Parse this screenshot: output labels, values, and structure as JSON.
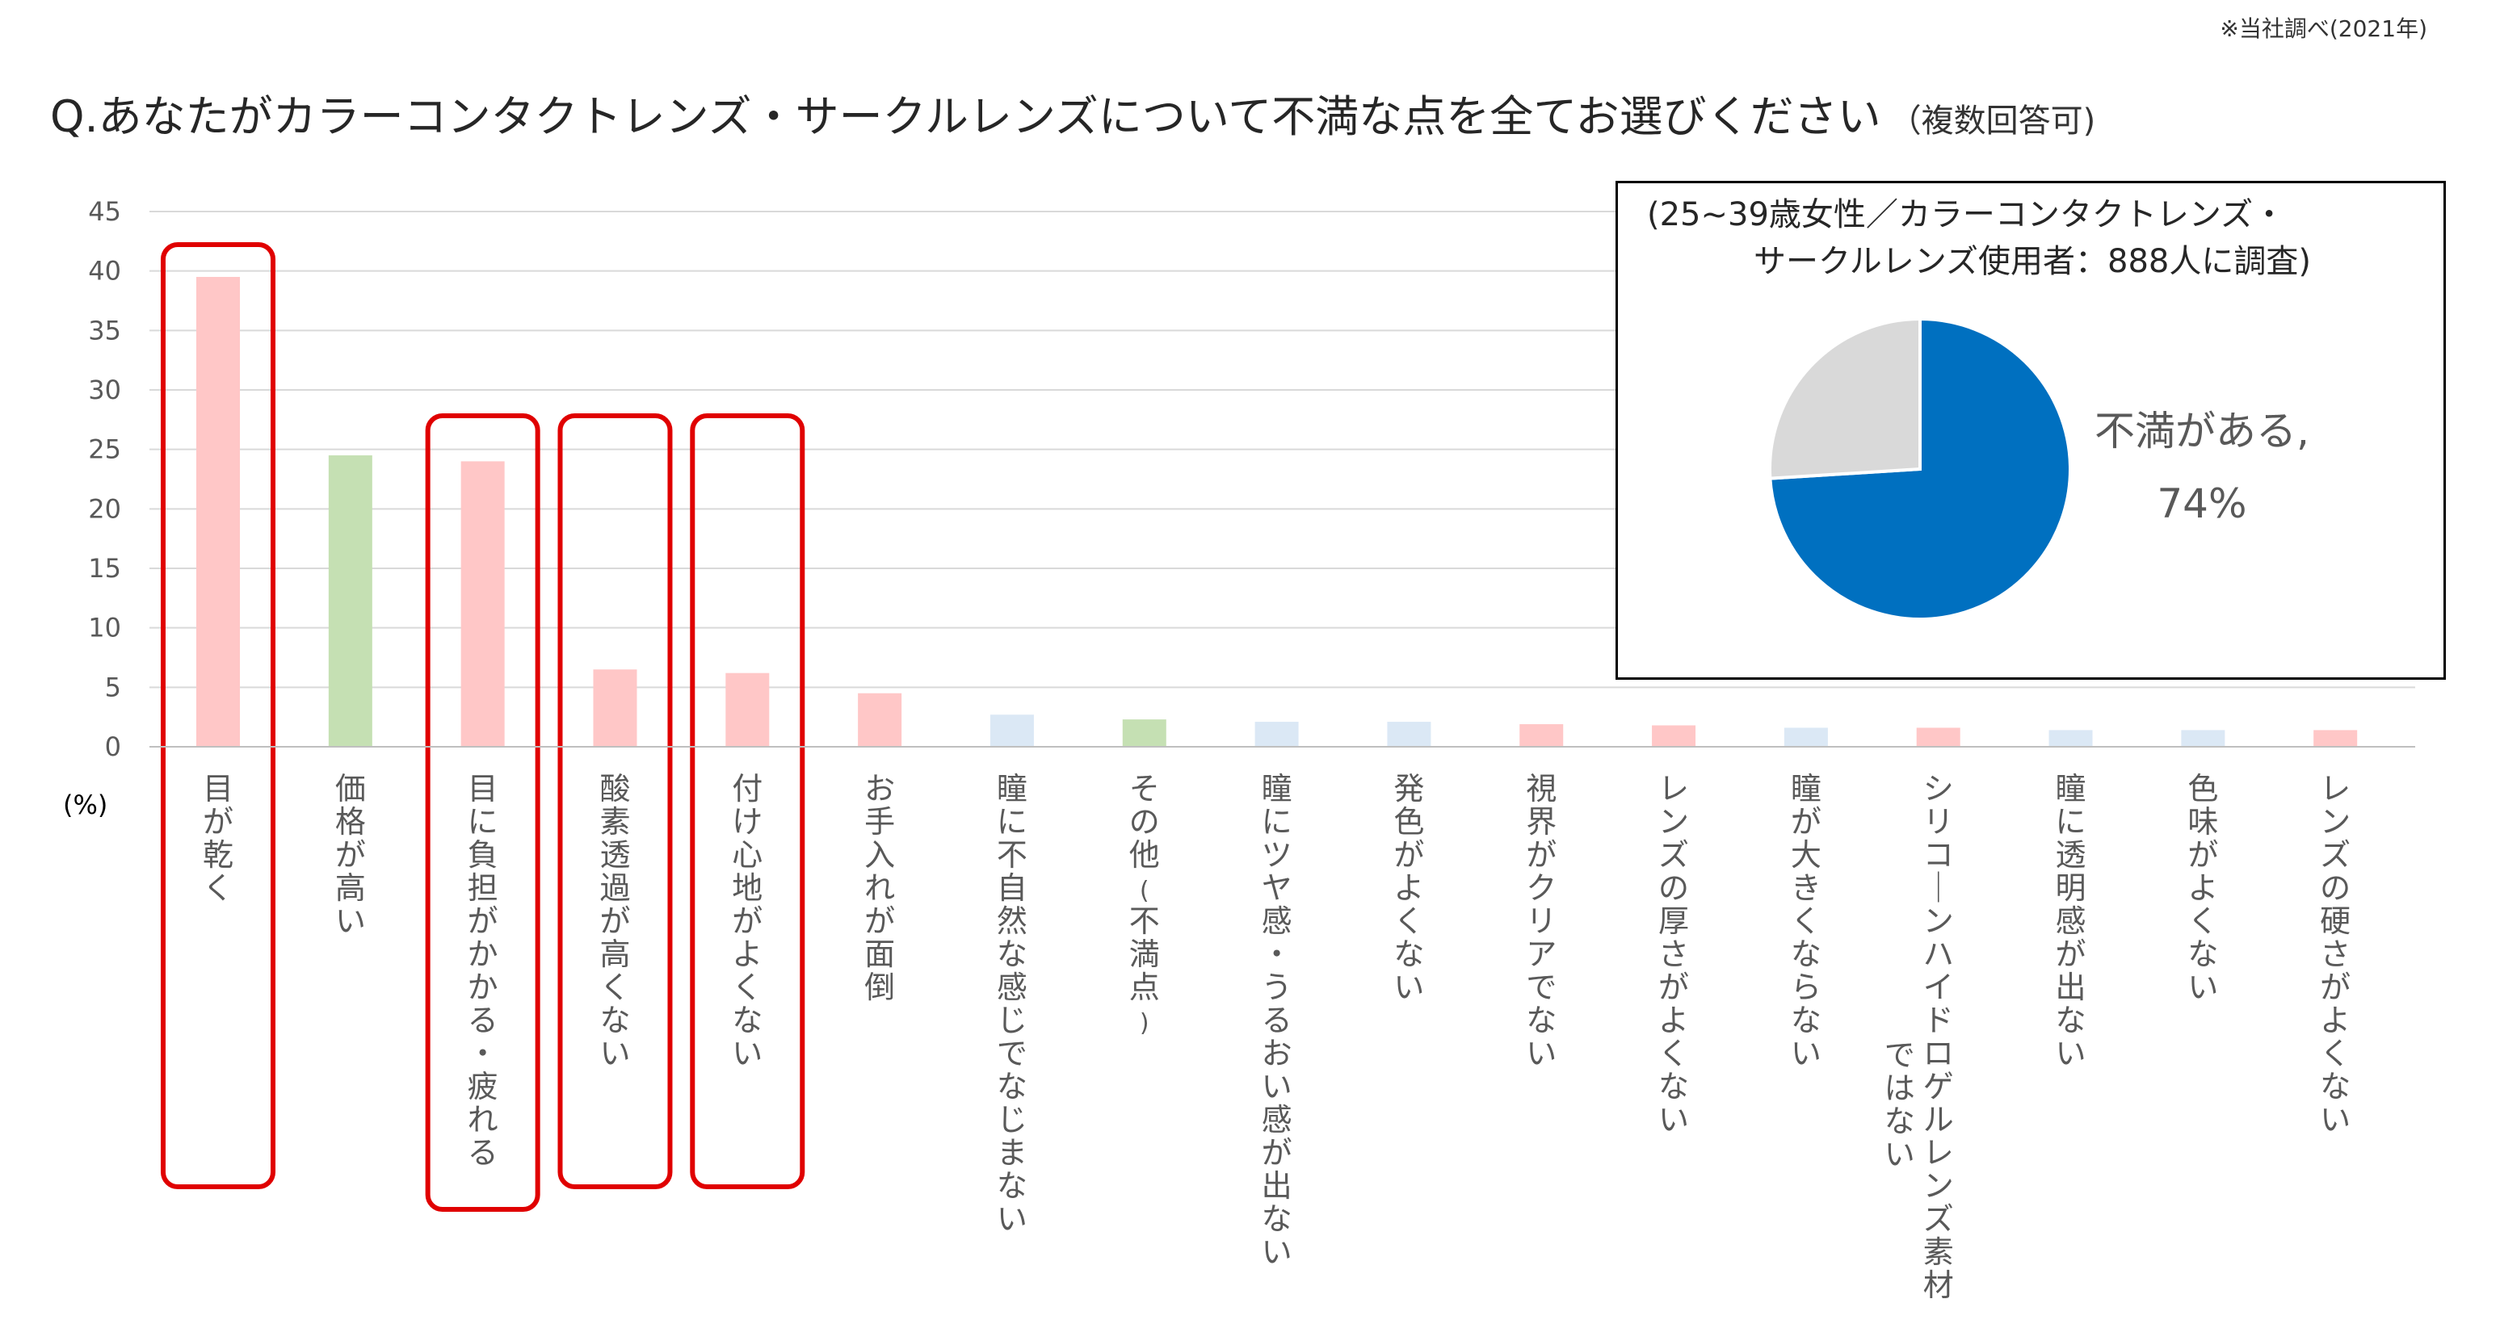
{
  "source_note": "※当社調べ(2021年)",
  "question": "Q.あなたがカラーコンタクトレンズ・サークルレンズについて不満な点を全てお選びください",
  "question_note": "（複数回答可)",
  "unit_label": "(%)",
  "colors": {
    "pink": "#ffc7c7",
    "green": "#c5e0b3",
    "blue": "#dbe8f5",
    "highlight": "#e00000",
    "pie_blue": "#0070c0",
    "pie_gray": "#d9d9d9",
    "grid": "#d9d9d9"
  },
  "chart_data": [
    {
      "type": "bar",
      "ylim": [
        0,
        45
      ],
      "yticks": [
        0,
        5,
        10,
        15,
        20,
        25,
        30,
        35,
        40,
        45
      ],
      "ylabel": "(%)",
      "grid": true,
      "categories": [
        "目が乾く",
        "価格が高い",
        "目に負担がかかる・疲れる",
        "酸素透過が高くない",
        "付け心地がよくない",
        "お手入れが面倒",
        "瞳に不自然な感じでなじまない",
        "その他(不満点)",
        "瞳にツヤ感・うるおい感が出ない",
        "発色がよくない",
        "視界がクリアでない",
        "レンズの厚さがよくない",
        "瞳が大きくならない",
        "シリコーンハイドロゲルレンズ素材ではない",
        "瞳に透明感が出ない",
        "色味がよくない",
        "レンズの硬さがよくない"
      ],
      "label_lines": [
        [
          "目が乾く"
        ],
        [
          "価格が高い"
        ],
        [
          "目に負担がかかる・疲れる"
        ],
        [
          "酸素透過が高くない"
        ],
        [
          "付け心地がよくない"
        ],
        [
          "お手入れが面倒"
        ],
        [
          "瞳に不自然な感じでなじまない"
        ],
        [
          "その他(不満点)"
        ],
        [
          "瞳にツヤ感・うるおい感が出ない"
        ],
        [
          "発色がよくない"
        ],
        [
          "視界がクリアでない"
        ],
        [
          "レンズの厚さがよくない"
        ],
        [
          "瞳が大きくならない"
        ],
        [
          "シリコーンハイドロゲルレンズ素材",
          "ではない"
        ],
        [
          "瞳に透明感が出ない"
        ],
        [
          "色味がよくない"
        ],
        [
          "レンズの硬さがよくない"
        ]
      ],
      "values": [
        39.5,
        24.5,
        24.0,
        6.5,
        6.2,
        4.5,
        2.7,
        2.3,
        2.1,
        2.1,
        1.9,
        1.8,
        1.6,
        1.6,
        1.4,
        1.4,
        1.4
      ],
      "bar_colors": [
        "pink",
        "green",
        "pink",
        "pink",
        "pink",
        "pink",
        "blue",
        "green",
        "blue",
        "blue",
        "pink",
        "pink",
        "blue",
        "pink",
        "blue",
        "blue",
        "pink"
      ],
      "highlighted": [
        0,
        2,
        3,
        4
      ]
    },
    {
      "type": "pie",
      "note_line1": "(25~39歳女性／カラーコンタクトレンズ・",
      "note_line2": "サークルレンズ使用者：888人に調査)",
      "slices": [
        {
          "name": "不満がある",
          "value": 74,
          "color": "pie_blue"
        },
        {
          "name": "",
          "value": 26,
          "color": "pie_gray"
        }
      ],
      "label_name": "不満がある,",
      "label_value": "74%"
    }
  ]
}
